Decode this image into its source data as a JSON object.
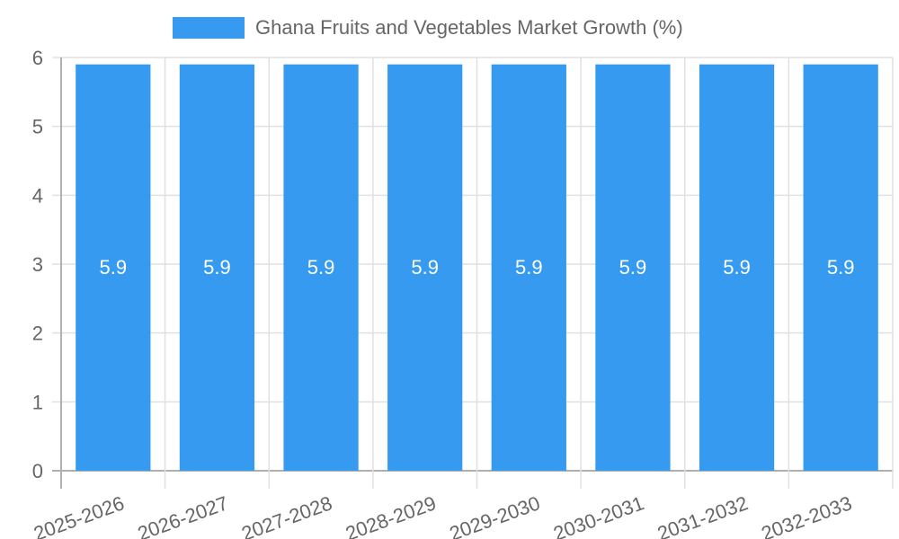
{
  "legend": {
    "label": "Ghana Fruits and Vegetables Market Growth (%)",
    "color": "#369bf0"
  },
  "chart_data": {
    "type": "bar",
    "title": "",
    "xlabel": "",
    "ylabel": "",
    "categories": [
      "2025-2026",
      "2026-2027",
      "2027-2028",
      "2028-2029",
      "2029-2030",
      "2030-2031",
      "2031-2032",
      "2032-2033"
    ],
    "series": [
      {
        "name": "Ghana Fruits and Vegetables Market Growth (%)",
        "values": [
          5.9,
          5.9,
          5.9,
          5.9,
          5.9,
          5.9,
          5.9,
          5.9
        ],
        "color": "#369bf0"
      }
    ],
    "ylim": [
      0,
      6
    ],
    "yticks": [
      0,
      1,
      2,
      3,
      4,
      5,
      6
    ],
    "grid": true,
    "legend_position": "top",
    "data_labels": true
  }
}
